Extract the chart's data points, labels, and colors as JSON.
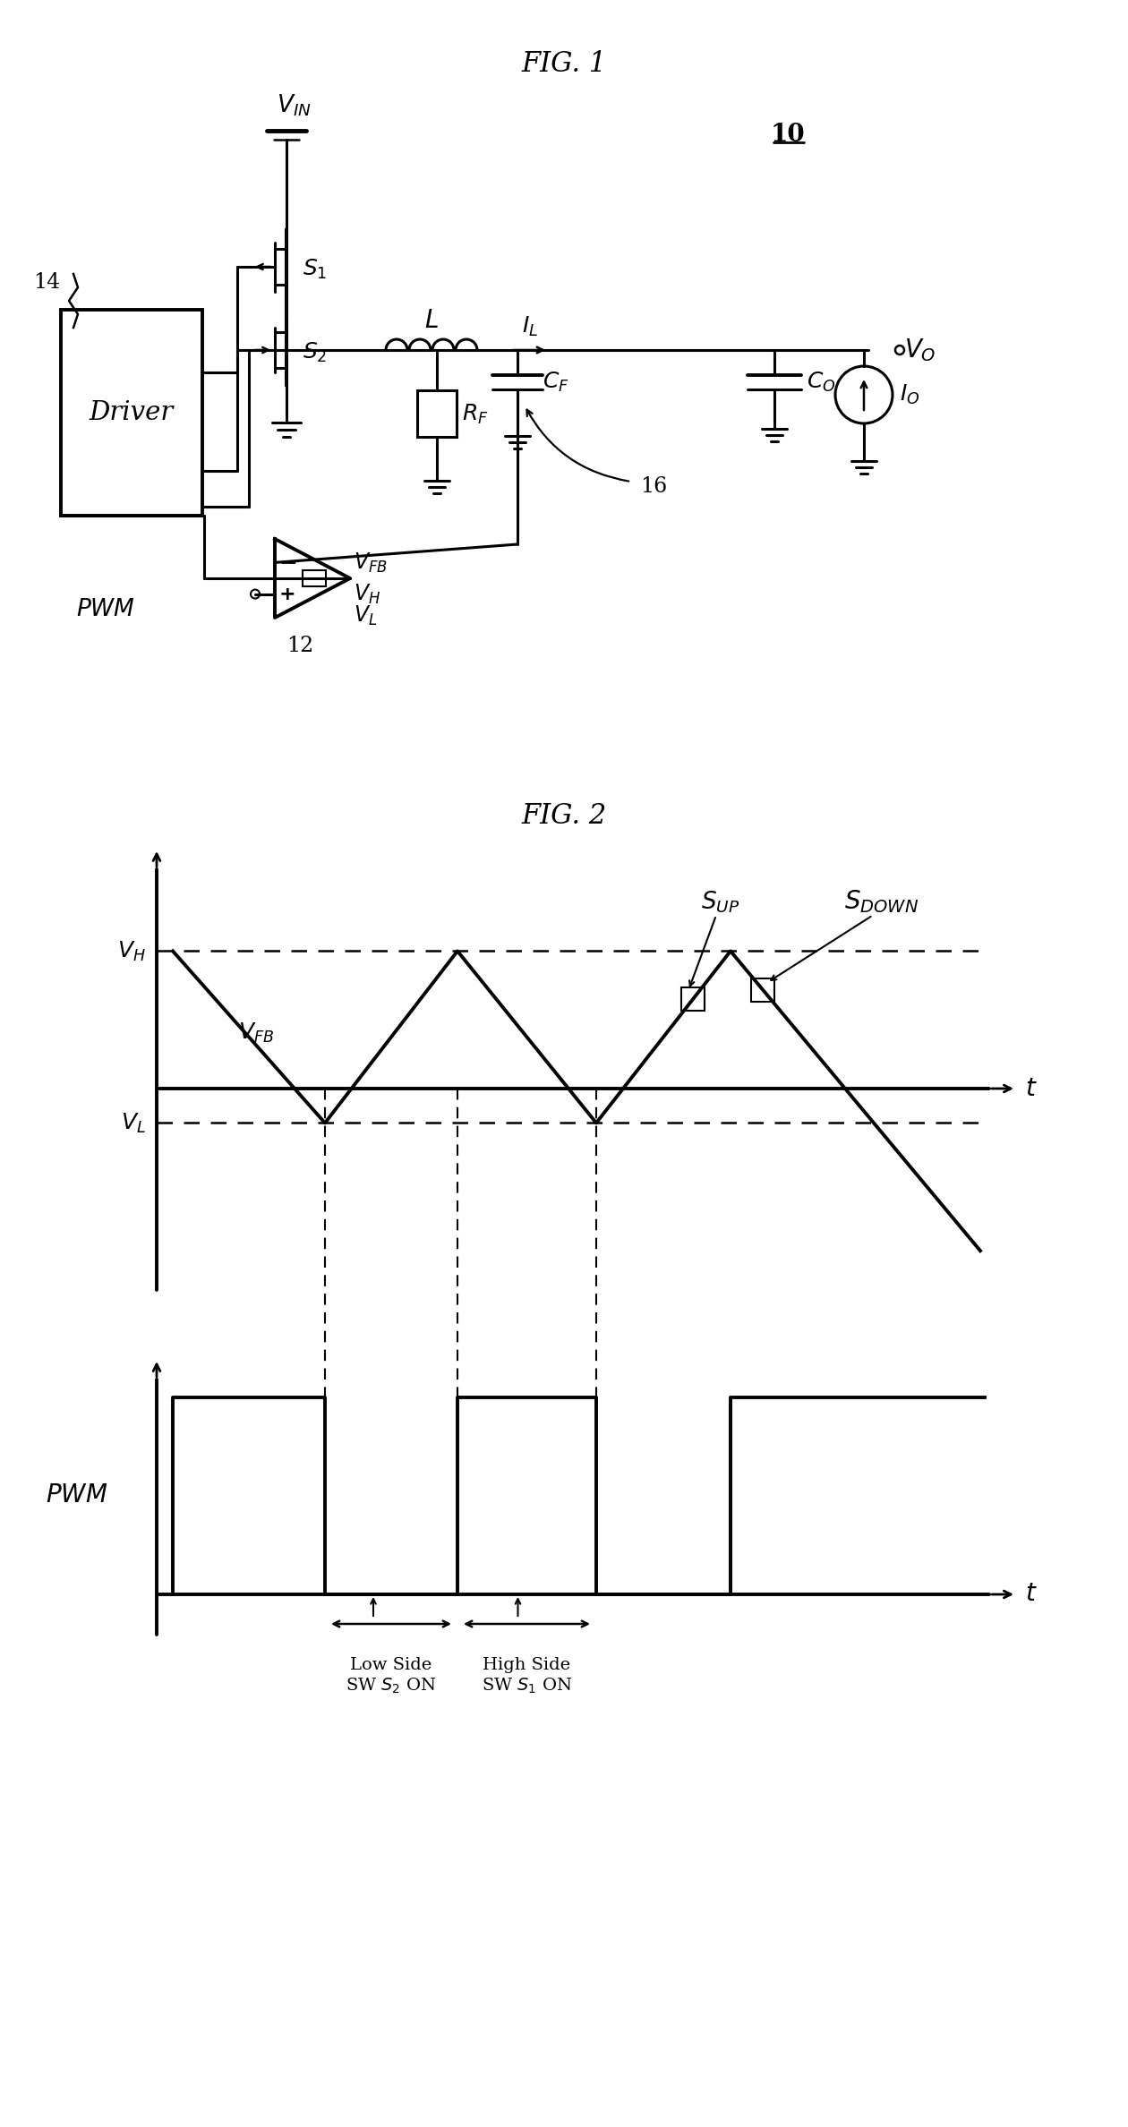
{
  "fig1_title": "FIG. 1",
  "fig2_title": "FIG. 2",
  "background_color": "#ffffff",
  "line_color": "#000000",
  "fig_label_10": "10",
  "fig_label_14": "14",
  "fig_label_12": "12",
  "fig_label_16": "16",
  "VH_level": 0.82,
  "VL_level": 0.42
}
